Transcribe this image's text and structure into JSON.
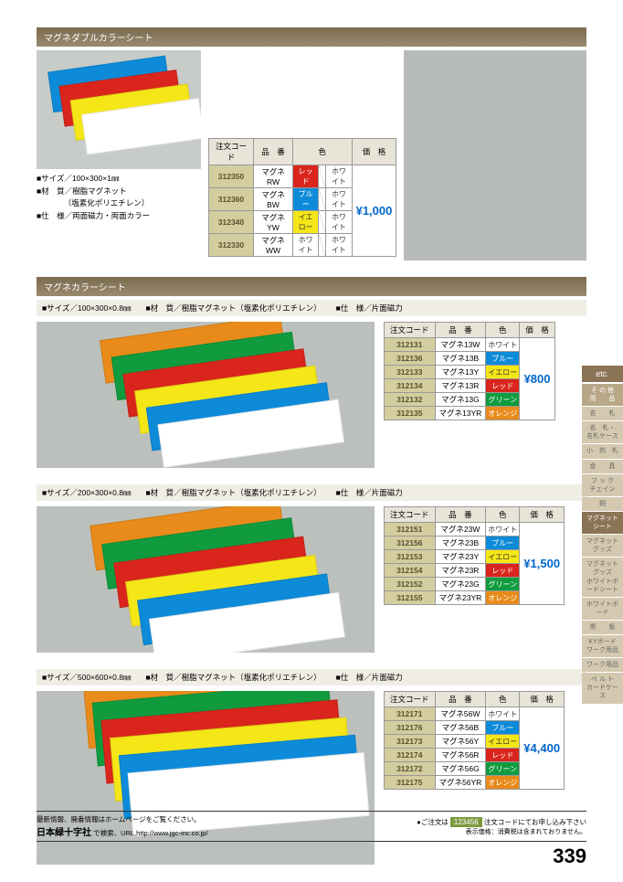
{
  "colors": {
    "red": "#d9251c",
    "blue": "#0d8bd9",
    "yellow": "#f5e617",
    "green": "#0f9b3e",
    "orange": "#e88b1a",
    "white": "#ffffff",
    "codeCell": "#d4cd9f"
  },
  "sec1": {
    "title": "マグネダブルカラーシート",
    "specs": [
      "■サイズ／100×300×1㎜",
      "■材　質／樹脂マグネット",
      "　　　　（塩素化ポリエチレン）",
      "■仕　様／両面磁力・両面カラー"
    ],
    "headers": [
      "注文コード",
      "品　番",
      "色",
      "価　格"
    ],
    "rows": [
      {
        "code": "312350",
        "item": "マグネRW",
        "c1": "レッド",
        "c1bg": "#d9251c",
        "c2": "ホワイト",
        "c2bg": "#fff",
        "c2fg": "#333"
      },
      {
        "code": "312360",
        "item": "マグネBW",
        "c1": "ブルー",
        "c1bg": "#0d8bd9",
        "c2": "ホワイト",
        "c2bg": "#fff",
        "c2fg": "#333"
      },
      {
        "code": "312340",
        "item": "マグネYW",
        "c1": "イエロー",
        "c1bg": "#f5e617",
        "c1fg": "#333",
        "c2": "ホワイト",
        "c2bg": "#fff",
        "c2fg": "#333"
      },
      {
        "code": "312330",
        "item": "マグネWW",
        "c1": "ホワイト",
        "c1bg": "#fff",
        "c1fg": "#333",
        "c2": "ホワイト",
        "c2bg": "#fff",
        "c2fg": "#333"
      }
    ],
    "price": "¥1,000"
  },
  "sec2": {
    "title": "マグネカラーシート",
    "specLine": [
      "■サイズ／100×300×0.8㎜",
      "■材　質／樹脂マグネット（塩素化ポリエチレン）",
      "■仕　様／片面磁力"
    ],
    "headers": [
      "注文コード",
      "品　番",
      "色",
      "価　格"
    ],
    "rows": [
      {
        "code": "312131",
        "item": "マグネ13W",
        "c": "ホワイト",
        "bg": "#fff",
        "fg": "#333"
      },
      {
        "code": "312136",
        "item": "マグネ13B",
        "c": "ブルー",
        "bg": "#0d8bd9"
      },
      {
        "code": "312133",
        "item": "マグネ13Y",
        "c": "イエロー",
        "bg": "#f5e617",
        "fg": "#333"
      },
      {
        "code": "312134",
        "item": "マグネ13R",
        "c": "レッド",
        "bg": "#d9251c"
      },
      {
        "code": "312132",
        "item": "マグネ13G",
        "c": "グリーン",
        "bg": "#0f9b3e"
      },
      {
        "code": "312135",
        "item": "マグネ13YR",
        "c": "オレンジ",
        "bg": "#e88b1a"
      }
    ],
    "price": "¥800"
  },
  "sec3": {
    "specLine": [
      "■サイズ／200×300×0.8㎜",
      "■材　質／樹脂マグネット（塩素化ポリエチレン）",
      "■仕　様／片面磁力"
    ],
    "rows": [
      {
        "code": "312151",
        "item": "マグネ23W",
        "c": "ホワイト",
        "bg": "#fff",
        "fg": "#333"
      },
      {
        "code": "312156",
        "item": "マグネ23B",
        "c": "ブルー",
        "bg": "#0d8bd9"
      },
      {
        "code": "312153",
        "item": "マグネ23Y",
        "c": "イエロー",
        "bg": "#f5e617",
        "fg": "#333"
      },
      {
        "code": "312154",
        "item": "マグネ23R",
        "c": "レッド",
        "bg": "#d9251c"
      },
      {
        "code": "312152",
        "item": "マグネ23G",
        "c": "グリーン",
        "bg": "#0f9b3e"
      },
      {
        "code": "312155",
        "item": "マグネ23YR",
        "c": "オレンジ",
        "bg": "#e88b1a"
      }
    ],
    "price": "¥1,500"
  },
  "sec4": {
    "specLine": [
      "■サイズ／500×600×0.8㎜",
      "■材　質／樹脂マグネット（塩素化ポリエチレン）",
      "■仕　様／片面磁力"
    ],
    "rows": [
      {
        "code": "312171",
        "item": "マグネ56W",
        "c": "ホワイト",
        "bg": "#fff",
        "fg": "#333"
      },
      {
        "code": "312176",
        "item": "マグネ56B",
        "c": "ブルー",
        "bg": "#0d8bd9"
      },
      {
        "code": "312173",
        "item": "マグネ56Y",
        "c": "イエロー",
        "bg": "#f5e617",
        "fg": "#333"
      },
      {
        "code": "312174",
        "item": "マグネ56R",
        "c": "レッド",
        "bg": "#d9251c"
      },
      {
        "code": "312172",
        "item": "マグネ56G",
        "c": "グリーン",
        "bg": "#0f9b3e"
      },
      {
        "code": "312175",
        "item": "マグネ56YR",
        "c": "オレンジ",
        "bg": "#e88b1a"
      }
    ],
    "price": "¥4,400"
  },
  "sidebar": {
    "etc": "etc.",
    "main": "そ の 他\n用　　品",
    "items": [
      "名　　札",
      "名　札・\n名札ケース",
      "小　判　札",
      "金　　具",
      "フ ッ ク\nチェイン",
      "銅",
      "マグネットシート",
      "マグネットグッズ",
      "マグネットグッズ\nホワイトボードシート",
      "ホワイトボード",
      "黒　　板",
      "KYボード\nワーク用品",
      "ワーク用品",
      "ベ ル ト\nカードケース"
    ]
  },
  "footer": {
    "line1": "最新情報、廃番情報はホームページをご覧ください。",
    "line2a": "日本緑十字社",
    "line2b": "で検索、URL,http://www.jgc-inc.co.jp/",
    "order1": "●ご注文は",
    "order2": "123456",
    "order3": "注文コードにてお申し込み下さい",
    "tax": "表示価格：消費税は含まれておりません。",
    "page": "339"
  },
  "sheetColors": [
    "#0d8bd9",
    "#d9251c",
    "#f5e617",
    "#ffffff"
  ],
  "sheetColors6": [
    "#e88b1a",
    "#0f9b3e",
    "#d9251c",
    "#f5e617",
    "#0d8bd9",
    "#ffffff"
  ]
}
